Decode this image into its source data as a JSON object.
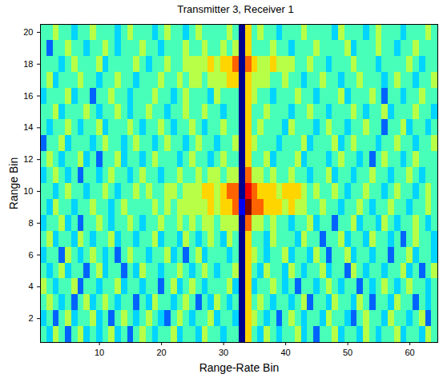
{
  "chart_data": {
    "type": "heatmap",
    "title": "Transmitter 3, Receiver 1",
    "x_label": "Range-Rate Bin",
    "y_label": "Range Bin",
    "x": [
      1,
      2,
      3,
      4,
      5,
      6,
      7,
      8,
      9,
      10,
      11,
      12,
      13,
      14,
      15,
      16,
      17,
      18,
      19,
      20,
      21,
      22,
      23,
      24,
      25,
      26,
      27,
      28,
      29,
      30,
      31,
      32,
      33,
      34,
      35,
      36,
      37,
      38,
      39,
      40,
      41,
      42,
      43,
      44,
      45,
      46,
      47,
      48,
      49,
      50,
      51,
      52,
      53,
      54,
      55,
      56,
      57,
      58,
      59,
      60,
      61,
      62,
      63,
      64
    ],
    "y": [
      1,
      2,
      3,
      4,
      5,
      6,
      7,
      8,
      9,
      10,
      11,
      12,
      13,
      14,
      15,
      16,
      17,
      18,
      19,
      20
    ],
    "values": [
      [
        4,
        3,
        5,
        4,
        2,
        4,
        5,
        3,
        4,
        3,
        4,
        5,
        3,
        4,
        2,
        4,
        5,
        4,
        3,
        4,
        4,
        5,
        3,
        4,
        4,
        3,
        5,
        4,
        4,
        3,
        4,
        4,
        0,
        6,
        4,
        3,
        5,
        4,
        3,
        4,
        4,
        5,
        3,
        4,
        2,
        4,
        4,
        5,
        3,
        4,
        4,
        3,
        5,
        4,
        3,
        4,
        4,
        5,
        3,
        4,
        4,
        3,
        5,
        4
      ],
      [
        3,
        4,
        2,
        4,
        5,
        3,
        4,
        4,
        5,
        3,
        4,
        2,
        4,
        5,
        4,
        3,
        4,
        5,
        4,
        3,
        2,
        4,
        5,
        4,
        3,
        4,
        4,
        5,
        3,
        4,
        4,
        3,
        0,
        6,
        5,
        4,
        3,
        4,
        2,
        4,
        5,
        4,
        3,
        4,
        4,
        3,
        5,
        4,
        4,
        3,
        2,
        4,
        5,
        4,
        4,
        3,
        5,
        4,
        4,
        3,
        4,
        5,
        2,
        4
      ],
      [
        4,
        5,
        4,
        3,
        4,
        2,
        4,
        5,
        3,
        4,
        5,
        4,
        3,
        4,
        4,
        2,
        4,
        3,
        5,
        4,
        4,
        3,
        4,
        5,
        4,
        2,
        4,
        3,
        5,
        4,
        3,
        4,
        0,
        6,
        4,
        5,
        4,
        3,
        4,
        4,
        3,
        4,
        5,
        2,
        4,
        4,
        3,
        5,
        4,
        4,
        3,
        5,
        4,
        2,
        4,
        4,
        3,
        5,
        4,
        4,
        2,
        4,
        3,
        4
      ],
      [
        5,
        4,
        3,
        4,
        4,
        5,
        2,
        4,
        4,
        3,
        4,
        4,
        5,
        3,
        4,
        4,
        3,
        4,
        4,
        2,
        4,
        5,
        3,
        4,
        5,
        4,
        3,
        4,
        4,
        4,
        5,
        3,
        0,
        6,
        3,
        4,
        4,
        5,
        4,
        3,
        4,
        2,
        4,
        4,
        3,
        4,
        5,
        4,
        3,
        4,
        4,
        2,
        4,
        3,
        4,
        5,
        4,
        3,
        4,
        5,
        4,
        4,
        3,
        4
      ],
      [
        4,
        3,
        4,
        5,
        3,
        4,
        4,
        2,
        4,
        5,
        3,
        4,
        4,
        2,
        4,
        3,
        5,
        4,
        4,
        3,
        4,
        4,
        5,
        4,
        3,
        4,
        5,
        4,
        3,
        4,
        4,
        5,
        0,
        6,
        4,
        3,
        5,
        4,
        4,
        3,
        5,
        4,
        3,
        4,
        4,
        5,
        3,
        4,
        4,
        2,
        5,
        4,
        3,
        4,
        4,
        3,
        4,
        4,
        5,
        3,
        4,
        2,
        4,
        5
      ],
      [
        3,
        4,
        4,
        2,
        5,
        4,
        3,
        4,
        5,
        4,
        3,
        4,
        2,
        4,
        5,
        4,
        4,
        3,
        4,
        4,
        5,
        3,
        4,
        2,
        4,
        5,
        3,
        4,
        4,
        4,
        3,
        4,
        0,
        6,
        5,
        4,
        3,
        4,
        4,
        5,
        3,
        4,
        4,
        3,
        5,
        4,
        2,
        4,
        4,
        5,
        3,
        4,
        4,
        3,
        4,
        4,
        2,
        4,
        4,
        5,
        3,
        4,
        4,
        3
      ],
      [
        4,
        5,
        3,
        4,
        4,
        3,
        5,
        4,
        3,
        4,
        4,
        5,
        3,
        4,
        4,
        3,
        4,
        4,
        5,
        3,
        4,
        4,
        3,
        5,
        4,
        3,
        4,
        5,
        4,
        3,
        5,
        4,
        0,
        6,
        4,
        4,
        3,
        5,
        4,
        4,
        4,
        3,
        5,
        4,
        4,
        2,
        4,
        4,
        5,
        3,
        4,
        4,
        3,
        5,
        4,
        4,
        3,
        4,
        2,
        4,
        5,
        4,
        4,
        3
      ],
      [
        3,
        4,
        4,
        5,
        3,
        4,
        2,
        4,
        4,
        5,
        4,
        3,
        4,
        4,
        5,
        4,
        3,
        4,
        4,
        5,
        4,
        4,
        5,
        4,
        5,
        4,
        5,
        5,
        4,
        5,
        5,
        5,
        0,
        7,
        5,
        5,
        4,
        5,
        4,
        4,
        3,
        4,
        4,
        5,
        3,
        4,
        4,
        2,
        4,
        4,
        5,
        3,
        4,
        4,
        3,
        5,
        4,
        3,
        4,
        4,
        5,
        4,
        3,
        4
      ],
      [
        4,
        3,
        5,
        4,
        4,
        3,
        4,
        4,
        5,
        4,
        4,
        3,
        4,
        5,
        4,
        4,
        4,
        4,
        5,
        4,
        5,
        4,
        5,
        5,
        5,
        5,
        5,
        6,
        5,
        6,
        6,
        7,
        1,
        9,
        7,
        7,
        6,
        6,
        6,
        5,
        6,
        5,
        5,
        4,
        4,
        5,
        4,
        4,
        3,
        4,
        4,
        5,
        4,
        3,
        4,
        4,
        5,
        4,
        4,
        3,
        4,
        4,
        5,
        4
      ],
      [
        4,
        4,
        3,
        4,
        5,
        4,
        4,
        3,
        4,
        4,
        5,
        4,
        3,
        4,
        4,
        5,
        4,
        5,
        4,
        4,
        5,
        5,
        4,
        5,
        5,
        5,
        6,
        6,
        5,
        6,
        7,
        7,
        0,
        8,
        7,
        6,
        6,
        6,
        5,
        6,
        6,
        6,
        5,
        4,
        5,
        4,
        4,
        5,
        4,
        3,
        4,
        4,
        5,
        4,
        4,
        3,
        4,
        5,
        4,
        4,
        3,
        4,
        5,
        4
      ],
      [
        3,
        4,
        5,
        4,
        3,
        4,
        2,
        4,
        4,
        3,
        4,
        5,
        4,
        4,
        3,
        4,
        5,
        4,
        4,
        3,
        4,
        4,
        5,
        4,
        4,
        5,
        4,
        5,
        5,
        4,
        5,
        5,
        0,
        7,
        5,
        5,
        4,
        5,
        4,
        4,
        5,
        4,
        4,
        3,
        4,
        4,
        5,
        3,
        4,
        4,
        3,
        4,
        4,
        5,
        4,
        4,
        3,
        4,
        4,
        5,
        4,
        3,
        4,
        4
      ],
      [
        4,
        5,
        4,
        3,
        4,
        4,
        5,
        3,
        4,
        2,
        4,
        4,
        5,
        3,
        4,
        4,
        3,
        4,
        5,
        4,
        4,
        4,
        3,
        4,
        5,
        4,
        4,
        3,
        4,
        5,
        4,
        4,
        0,
        6,
        4,
        4,
        5,
        3,
        4,
        4,
        4,
        5,
        3,
        4,
        4,
        4,
        3,
        4,
        5,
        4,
        4,
        3,
        4,
        2,
        4,
        5,
        4,
        4,
        3,
        4,
        5,
        4,
        4,
        4
      ],
      [
        2,
        4,
        4,
        5,
        3,
        4,
        4,
        4,
        3,
        4,
        5,
        4,
        4,
        3,
        4,
        5,
        4,
        4,
        3,
        4,
        5,
        4,
        4,
        3,
        4,
        5,
        4,
        4,
        3,
        4,
        4,
        5,
        0,
        6,
        5,
        4,
        4,
        4,
        3,
        4,
        4,
        4,
        5,
        3,
        4,
        4,
        4,
        5,
        3,
        4,
        5,
        4,
        4,
        4,
        3,
        4,
        4,
        5,
        4,
        4,
        3,
        4,
        4,
        5
      ],
      [
        4,
        3,
        4,
        4,
        5,
        4,
        3,
        4,
        4,
        5,
        3,
        4,
        4,
        4,
        5,
        4,
        3,
        4,
        4,
        5,
        4,
        3,
        4,
        4,
        5,
        4,
        3,
        4,
        4,
        5,
        4,
        4,
        0,
        6,
        4,
        5,
        4,
        4,
        4,
        3,
        5,
        4,
        4,
        4,
        3,
        4,
        5,
        4,
        4,
        3,
        4,
        4,
        5,
        4,
        4,
        2,
        4,
        4,
        5,
        3,
        4,
        4,
        3,
        4
      ],
      [
        4,
        4,
        5,
        3,
        4,
        4,
        4,
        5,
        4,
        3,
        4,
        4,
        5,
        4,
        3,
        4,
        4,
        5,
        4,
        4,
        3,
        4,
        4,
        5,
        4,
        4,
        5,
        4,
        4,
        3,
        4,
        4,
        0,
        6,
        4,
        4,
        5,
        4,
        4,
        4,
        3,
        4,
        4,
        5,
        4,
        4,
        3,
        4,
        4,
        4,
        5,
        4,
        3,
        4,
        4,
        5,
        3,
        4,
        4,
        4,
        5,
        4,
        4,
        3
      ],
      [
        3,
        4,
        4,
        4,
        5,
        3,
        4,
        4,
        2,
        4,
        4,
        5,
        4,
        4,
        3,
        4,
        4,
        4,
        5,
        4,
        4,
        3,
        4,
        5,
        4,
        4,
        4,
        3,
        5,
        4,
        4,
        4,
        0,
        6,
        5,
        4,
        4,
        3,
        4,
        4,
        4,
        5,
        4,
        4,
        3,
        4,
        4,
        4,
        5,
        3,
        4,
        4,
        4,
        5,
        4,
        2,
        4,
        4,
        3,
        4,
        4,
        5,
        4,
        4
      ],
      [
        4,
        5,
        3,
        4,
        4,
        4,
        5,
        4,
        4,
        3,
        4,
        4,
        5,
        4,
        4,
        3,
        4,
        4,
        4,
        5,
        4,
        4,
        5,
        4,
        5,
        5,
        4,
        5,
        5,
        5,
        6,
        6,
        0,
        6,
        5,
        5,
        5,
        4,
        4,
        5,
        4,
        4,
        3,
        4,
        4,
        5,
        4,
        4,
        3,
        4,
        4,
        5,
        4,
        4,
        4,
        3,
        4,
        5,
        4,
        4,
        3,
        4,
        4,
        5
      ],
      [
        4,
        4,
        4,
        3,
        4,
        5,
        4,
        4,
        4,
        5,
        3,
        4,
        4,
        4,
        4,
        5,
        4,
        3,
        4,
        4,
        5,
        4,
        4,
        5,
        5,
        5,
        5,
        6,
        5,
        6,
        6,
        7,
        0,
        7,
        6,
        5,
        5,
        6,
        5,
        5,
        5,
        4,
        4,
        5,
        4,
        4,
        3,
        4,
        4,
        4,
        5,
        4,
        4,
        4,
        3,
        4,
        4,
        4,
        4,
        5,
        4,
        3,
        4,
        4
      ],
      [
        4,
        2,
        4,
        4,
        5,
        4,
        4,
        3,
        4,
        4,
        5,
        4,
        3,
        4,
        4,
        4,
        5,
        4,
        4,
        3,
        4,
        4,
        4,
        5,
        4,
        4,
        5,
        4,
        4,
        5,
        4,
        5,
        0,
        6,
        4,
        4,
        4,
        5,
        4,
        4,
        3,
        4,
        4,
        4,
        5,
        4,
        4,
        4,
        4,
        5,
        3,
        4,
        4,
        4,
        5,
        4,
        4,
        3,
        4,
        4,
        5,
        4,
        4,
        4
      ],
      [
        4,
        4,
        5,
        4,
        4,
        3,
        4,
        4,
        5,
        4,
        4,
        4,
        3,
        4,
        5,
        4,
        4,
        4,
        3,
        4,
        5,
        4,
        4,
        3,
        4,
        5,
        4,
        4,
        4,
        4,
        5,
        4,
        0,
        6,
        4,
        5,
        4,
        4,
        3,
        4,
        4,
        4,
        5,
        4,
        4,
        4,
        4,
        3,
        5,
        4,
        4,
        4,
        3,
        4,
        5,
        4,
        4,
        4,
        3,
        4,
        4,
        4,
        5,
        4
      ]
    ],
    "xlim": [
      0.5,
      64.5
    ],
    "ylim": [
      0.5,
      20.5
    ],
    "xticks": [
      10,
      20,
      30,
      40,
      50,
      60
    ],
    "yticks": [
      2,
      4,
      6,
      8,
      10,
      12,
      14,
      16,
      18,
      20
    ]
  }
}
